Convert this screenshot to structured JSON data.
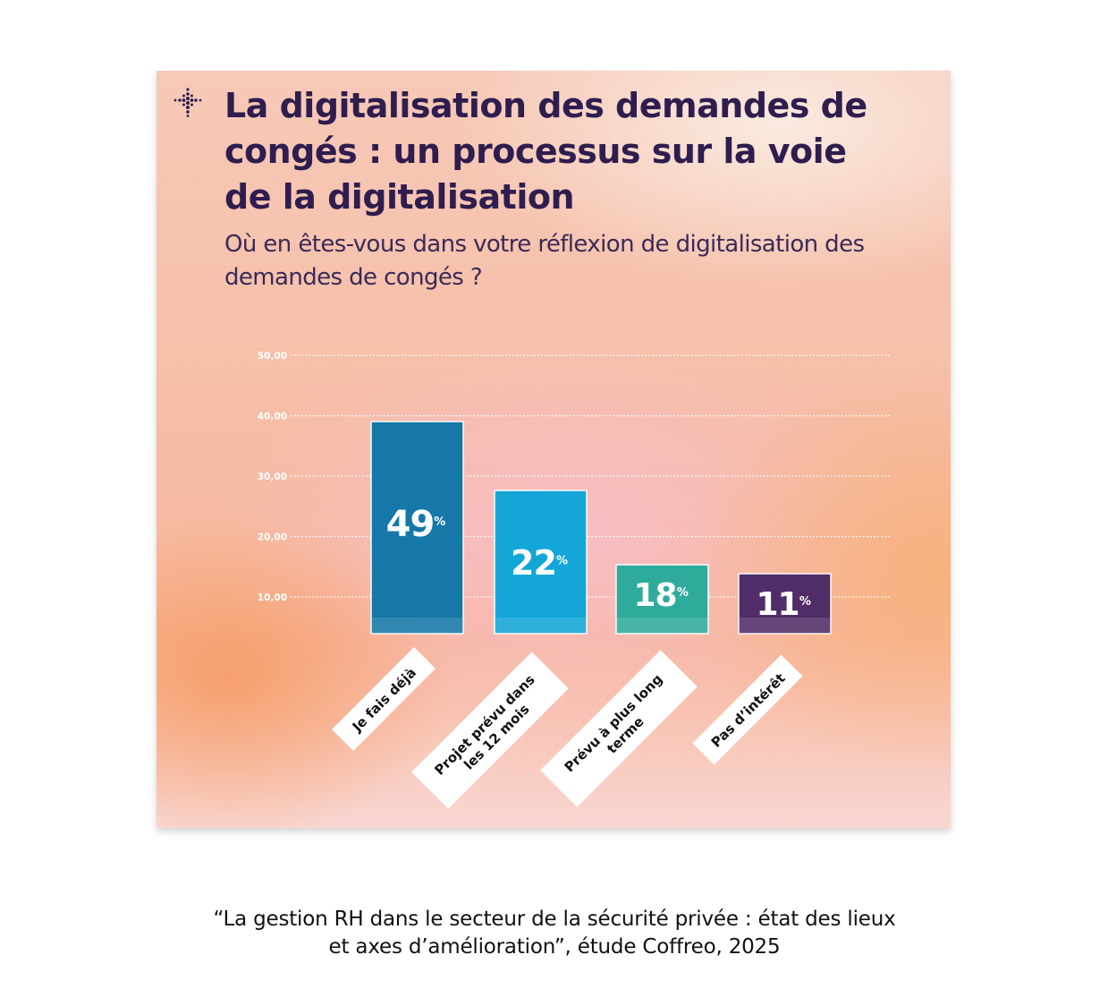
{
  "card": {
    "title_lines": [
      "La digitalisation des demandes de",
      "congés : un processus sur la voie",
      "de la digitalisation"
    ],
    "subtitle_lines": [
      "Où en êtes-vous dans votre réflexion de digitalisation des",
      "demandes de congés ?"
    ],
    "logo_icon": "dotted-cross-logo-icon"
  },
  "chart_data": {
    "type": "bar",
    "categories": [
      "Je fais déjà",
      "Projet prévu dans les 12 mois",
      "Prévu à plus long terme",
      "Pas d’intérêt"
    ],
    "category_label_lines": [
      [
        "Je fais déjà"
      ],
      [
        "Projet prévu dans",
        "les 12 mois"
      ],
      [
        "Prévu à plus long",
        "terme"
      ],
      [
        "Pas d’intérêt"
      ]
    ],
    "values": [
      49,
      22,
      18,
      11
    ],
    "value_labels": [
      "49",
      "22",
      "18",
      "11"
    ],
    "value_suffix": "%",
    "y_ticks": [
      "10,00",
      "20,00",
      "30,00",
      "40,00",
      "50,00"
    ],
    "ylim": [
      0,
      50
    ],
    "colors": [
      "#0c76a8",
      "#0aa6d8",
      "#27ab9c",
      "#4a2866"
    ],
    "grid": true,
    "title": "",
    "xlabel": "",
    "ylabel": ""
  },
  "caption_lines": [
    "“La gestion RH dans le secteur de la sécurité privée : état des lieux",
    "et axes d’amélioration”, étude Coffreo, 2025"
  ]
}
